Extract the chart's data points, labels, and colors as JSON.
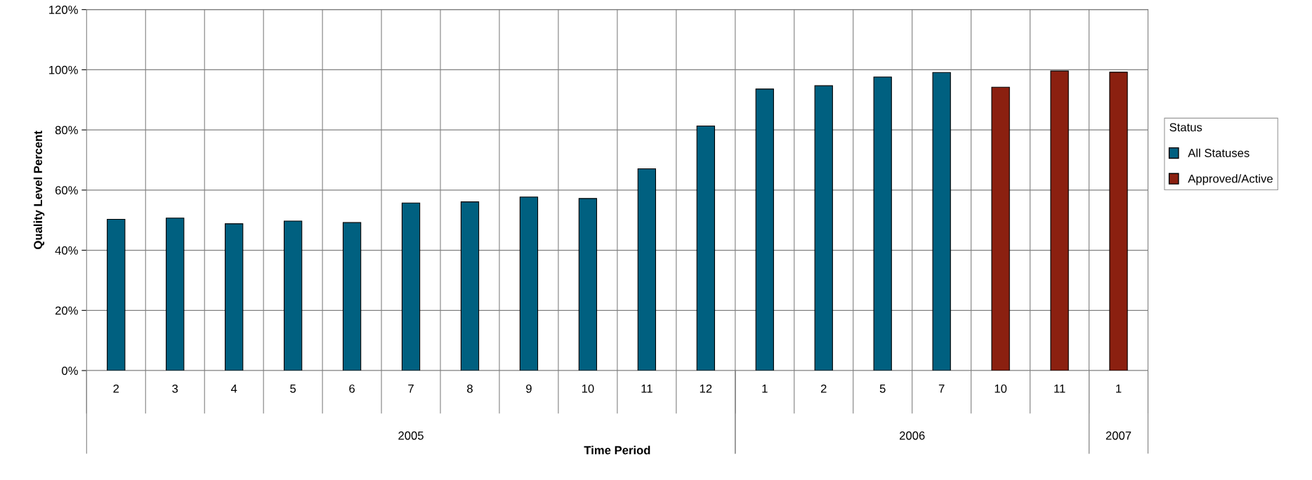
{
  "chart_data": {
    "type": "bar",
    "xlabel": "Time Period",
    "ylabel": "Quality Level Percent",
    "legend_title": "Status",
    "categories": [
      "2",
      "3",
      "4",
      "5",
      "6",
      "7",
      "8",
      "9",
      "10",
      "11",
      "12",
      "1",
      "2",
      "5",
      "7",
      "10",
      "11",
      "1"
    ],
    "series": [
      {
        "name": "All Statuses",
        "color": "#006080",
        "values": [
          50.3,
          50.7,
          48.8,
          49.7,
          49.2,
          55.7,
          56.1,
          57.7,
          57.2,
          67.1,
          81.3,
          93.6,
          94.7,
          97.6,
          99.1,
          null,
          null,
          null
        ]
      },
      {
        "name": "Approved/Active",
        "color": "#8b2010",
        "values": [
          null,
          null,
          null,
          null,
          null,
          null,
          null,
          null,
          null,
          null,
          null,
          null,
          null,
          null,
          null,
          94.2,
          99.6,
          99.2
        ]
      }
    ],
    "ylim": [
      0,
      120
    ],
    "yticks": [
      {
        "value": 0,
        "label": "0%"
      },
      {
        "value": 20,
        "label": "20%"
      },
      {
        "value": 40,
        "label": "40%"
      },
      {
        "value": 60,
        "label": "60%"
      },
      {
        "value": 80,
        "label": "80%"
      },
      {
        "value": 100,
        "label": "100%"
      },
      {
        "value": 120,
        "label": "120%"
      }
    ],
    "grid": true,
    "legend": "right",
    "annotations": [
      "2005",
      "2006",
      "2007"
    ]
  }
}
